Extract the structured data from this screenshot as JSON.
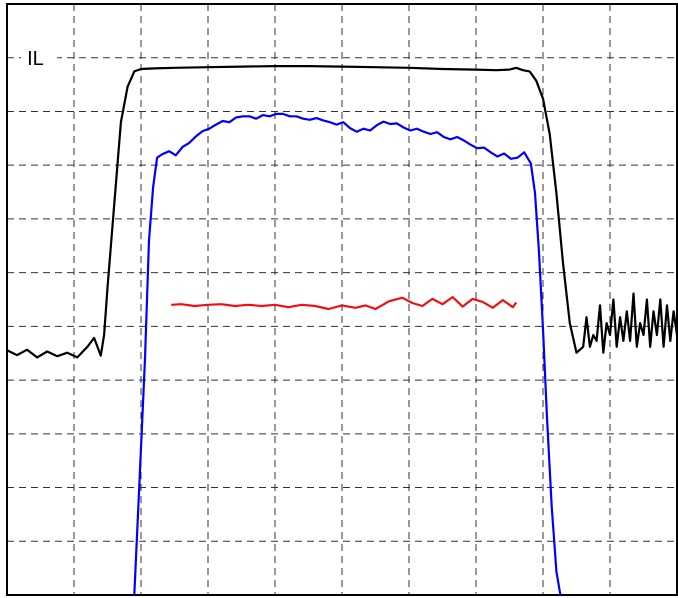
{
  "chart_data": {
    "type": "line",
    "title": "",
    "xlabel": "",
    "ylabel": "",
    "grid": true,
    "legend": "none",
    "xlim": [
      0,
      100
    ],
    "ylim": [
      0,
      100
    ],
    "x_divisions": 10,
    "y_divisions": 11,
    "annotations": [
      {
        "text": "IL",
        "x": 3,
        "y": 90.9
      }
    ],
    "series": [
      {
        "color": "#000000",
        "x": [
          0,
          1.5,
          3,
          4.5,
          6,
          7.5,
          9,
          10.5,
          12,
          13,
          14,
          14.5,
          15,
          16,
          17,
          18,
          19,
          20,
          22,
          25,
          30,
          35,
          40,
          45,
          50,
          55,
          60,
          65,
          70,
          73,
          75,
          76,
          77,
          78,
          79,
          80,
          81,
          82,
          83,
          84,
          85,
          86,
          86.5,
          87,
          87.5,
          88,
          88.5,
          89,
          89.5,
          90,
          90.5,
          91,
          91.5,
          92,
          92.5,
          93,
          93.5,
          94,
          94.5,
          95,
          95.5,
          96,
          96.5,
          97,
          97.5,
          98,
          98.5,
          99,
          99.5,
          100
        ],
        "y": [
          41.4,
          40.6,
          41.5,
          40.2,
          41.2,
          40.4,
          41.0,
          40.2,
          42.0,
          43.5,
          40.5,
          44.0,
          52.0,
          66.0,
          80.0,
          86.0,
          88.6,
          89.0,
          89.1,
          89.2,
          89.3,
          89.4,
          89.5,
          89.5,
          89.4,
          89.3,
          89.2,
          89.0,
          88.9,
          88.8,
          88.9,
          89.2,
          88.8,
          88.6,
          87.0,
          84.0,
          78.0,
          68.0,
          56.0,
          46.0,
          41.0,
          42.0,
          47.0,
          42.0,
          44.0,
          43.0,
          49.0,
          41.0,
          46.0,
          44.0,
          50.0,
          42.0,
          47.0,
          43.0,
          48.0,
          43.0,
          51.0,
          42.0,
          46.0,
          44.0,
          50.0,
          42.0,
          48.0,
          44.0,
          50.0,
          42.0,
          49.0,
          43.0,
          48.0,
          44.0
        ]
      },
      {
        "color": "#0000ff",
        "x": [
          19.0,
          19.8,
          20.6,
          21.2,
          21.8,
          22.4,
          23.2,
          24.2,
          25.2,
          26.2,
          27.2,
          28.2,
          29.2,
          30.2,
          31.2,
          32.2,
          33.2,
          34.2,
          35.2,
          36.2,
          37.2,
          38.2,
          39.2,
          40.2,
          41.2,
          42.2,
          43.2,
          44.2,
          45.2,
          46.2,
          47.2,
          48.2,
          49.2,
          50.2,
          51.2,
          52.2,
          53.2,
          54.2,
          55.2,
          56.2,
          57.2,
          58.2,
          59.2,
          60.2,
          61.2,
          62.2,
          63.2,
          64.2,
          65.2,
          66.2,
          67.2,
          68.2,
          69.2,
          70.2,
          71.2,
          72.2,
          73.2,
          74.2,
          75.2,
          76.2,
          77.2,
          78.2,
          78.8,
          79.4,
          80.0,
          80.6,
          81.3,
          82.0,
          82.6
        ],
        "y": [
          0,
          20.0,
          40.0,
          60.0,
          69.0,
          74.0,
          74.6,
          75.1,
          74.4,
          75.8,
          76.5,
          77.6,
          78.5,
          78.9,
          79.6,
          80.2,
          80.0,
          80.8,
          81.0,
          81.0,
          80.6,
          81.2,
          81.0,
          81.4,
          81.4,
          81.0,
          81.0,
          80.6,
          80.4,
          80.7,
          80.3,
          80.0,
          79.6,
          80.0,
          79.0,
          78.4,
          78.9,
          78.6,
          79.5,
          80.1,
          79.7,
          79.8,
          79.1,
          78.6,
          78.9,
          78.4,
          78.0,
          78.3,
          77.5,
          77.1,
          77.5,
          76.9,
          76.2,
          75.6,
          75.7,
          74.9,
          74.2,
          74.7,
          73.8,
          74.0,
          74.9,
          73.0,
          68.0,
          58.0,
          45.0,
          30.0,
          15.0,
          4.0,
          0
        ]
      },
      {
        "color": "#ee1111",
        "x": [
          24.5,
          26,
          28,
          30,
          32,
          34,
          36,
          38,
          40,
          42,
          44,
          46,
          48,
          50,
          52,
          53.5,
          55,
          57,
          59,
          60.5,
          62,
          63.5,
          65,
          66.5,
          68,
          69.5,
          71,
          72.5,
          74,
          75.5,
          76
        ],
        "y": [
          49.1,
          49.2,
          48.9,
          49.1,
          49.2,
          48.9,
          49.1,
          48.9,
          49.1,
          48.7,
          49.1,
          48.9,
          48.4,
          49.0,
          48.6,
          49.0,
          48.4,
          49.7,
          50.3,
          49.4,
          48.9,
          50.1,
          49.2,
          50.4,
          48.8,
          50.1,
          49.6,
          48.6,
          49.9,
          48.7,
          49.5
        ]
      }
    ]
  }
}
